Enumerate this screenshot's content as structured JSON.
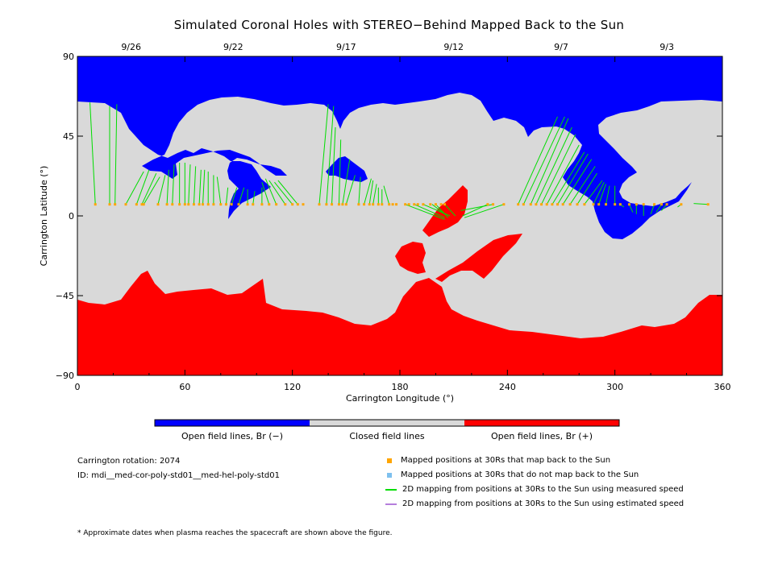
{
  "chart_data": {
    "type": "map",
    "title": "Simulated Coronal Holes with STEREO−Behind Mapped Back to the Sun",
    "xlabel": "Carrington Longitude (°)",
    "ylabel": "Carrington Latitude (°)",
    "xlim": [
      0,
      360
    ],
    "ylim": [
      -90,
      90
    ],
    "x_ticks": [
      0,
      60,
      120,
      180,
      240,
      300,
      360
    ],
    "y_ticks": [
      90,
      45,
      0,
      -45,
      -90
    ],
    "y_tick_labels": [
      "90",
      "45",
      "0",
      "−45",
      "−90"
    ],
    "top_date_labels": [
      {
        "lon": 30,
        "label": "9/26"
      },
      {
        "lon": 87,
        "label": "9/22"
      },
      {
        "lon": 150,
        "label": "9/17"
      },
      {
        "lon": 210,
        "label": "9/12"
      },
      {
        "lon": 270,
        "label": "9/7"
      },
      {
        "lon": 329,
        "label": "9/3"
      }
    ],
    "colorbar": [
      {
        "label": "Open field lines, Br (−)",
        "color": "#0000ff"
      },
      {
        "label": "Closed field lines",
        "color": "#d9d9d9"
      },
      {
        "label": "Open field lines, Br (+)",
        "color": "#ff0000"
      }
    ],
    "regions": {
      "north_open_color": "#0000ff",
      "south_open_color": "#ff0000",
      "closed_color": "#d9d9d9"
    },
    "mapped_positions_lat": 6.5,
    "mapped_positions_lon": [
      10,
      18,
      21,
      27,
      33,
      36,
      37,
      45,
      50,
      53,
      57,
      60,
      62,
      65,
      68,
      70,
      73,
      76,
      80,
      83,
      86,
      90,
      95,
      98,
      103,
      107,
      111,
      116,
      120,
      123,
      126,
      135,
      139,
      142,
      146,
      148,
      150,
      157,
      160,
      163,
      165,
      168,
      170,
      174,
      176,
      178,
      183,
      185,
      188,
      190,
      193,
      197,
      200,
      203,
      205,
      229,
      232,
      238,
      246,
      249,
      253,
      256,
      259,
      262,
      265,
      268,
      271,
      275,
      279,
      283,
      288,
      291,
      295,
      300,
      303,
      308,
      312,
      316,
      322,
      326,
      329,
      337,
      352
    ],
    "mapping_lines": [
      [
        10,
        6.5,
        7,
        64
      ],
      [
        18,
        6.5,
        18,
        62
      ],
      [
        21,
        6.5,
        22,
        63
      ],
      [
        27,
        6.5,
        37,
        25
      ],
      [
        33,
        6.5,
        40,
        26
      ],
      [
        36,
        6.5,
        44,
        24
      ],
      [
        37,
        6.5,
        46,
        22
      ],
      [
        45,
        6.5,
        49,
        23
      ],
      [
        50,
        6.5,
        51,
        26
      ],
      [
        53,
        6.5,
        54,
        29
      ],
      [
        57,
        6.5,
        57,
        30
      ],
      [
        60,
        6.5,
        60,
        30
      ],
      [
        62,
        6.5,
        63,
        29
      ],
      [
        65,
        6.5,
        66,
        28
      ],
      [
        68,
        6.5,
        69,
        26
      ],
      [
        70,
        6.5,
        71,
        26
      ],
      [
        73,
        6.5,
        73,
        25
      ],
      [
        76,
        6.5,
        76,
        23
      ],
      [
        80,
        6.5,
        78,
        22
      ],
      [
        83,
        6.5,
        84,
        16
      ],
      [
        86,
        6.5,
        89,
        16
      ],
      [
        90,
        6.5,
        93,
        16
      ],
      [
        95,
        6.5,
        95,
        15
      ],
      [
        98,
        6.5,
        99,
        14
      ],
      [
        103,
        6.5,
        103,
        16
      ],
      [
        107,
        6.5,
        103,
        19
      ],
      [
        111,
        6.5,
        105,
        21
      ],
      [
        116,
        6.5,
        107,
        20
      ],
      [
        120,
        6.5,
        110,
        19
      ],
      [
        123,
        6.5,
        112,
        20
      ],
      [
        135,
        6.5,
        140,
        63
      ],
      [
        139,
        6.5,
        143,
        62
      ],
      [
        142,
        6.5,
        144,
        50
      ],
      [
        146,
        6.5,
        147,
        43
      ],
      [
        148,
        6.5,
        152,
        32
      ],
      [
        150,
        6.5,
        155,
        23
      ],
      [
        157,
        6.5,
        158,
        22
      ],
      [
        160,
        6.5,
        164,
        21
      ],
      [
        163,
        6.5,
        165,
        20
      ],
      [
        165,
        6.5,
        167,
        18
      ],
      [
        168,
        6.5,
        168,
        16
      ],
      [
        170,
        6.5,
        170,
        15
      ],
      [
        174,
        6.5,
        171,
        17
      ],
      [
        183,
        6.5,
        205,
        -2
      ],
      [
        188,
        6.5,
        205,
        -1
      ],
      [
        193,
        6.5,
        208,
        0
      ],
      [
        198,
        6.5,
        205,
        1
      ],
      [
        200,
        6.5,
        207,
        -1
      ],
      [
        205,
        6.5,
        211,
        0
      ],
      [
        229,
        6.5,
        215,
        0
      ],
      [
        232,
        6.5,
        214,
        3
      ],
      [
        238,
        6.5,
        216,
        -1
      ],
      [
        246,
        6.5,
        268,
        56
      ],
      [
        249,
        6.5,
        272,
        56
      ],
      [
        253,
        6.5,
        274,
        55
      ],
      [
        256,
        6.5,
        276,
        50
      ],
      [
        259,
        6.5,
        278,
        46
      ],
      [
        262,
        6.5,
        280,
        40
      ],
      [
        265,
        6.5,
        283,
        36
      ],
      [
        268,
        6.5,
        285,
        35
      ],
      [
        271,
        6.5,
        287,
        32
      ],
      [
        275,
        6.5,
        289,
        28
      ],
      [
        279,
        6.5,
        290,
        24
      ],
      [
        283,
        6.5,
        293,
        20
      ],
      [
        288,
        6.5,
        294,
        19
      ],
      [
        291,
        6.5,
        295,
        18
      ],
      [
        295,
        6.5,
        297,
        17
      ],
      [
        300,
        6.5,
        300,
        17
      ],
      [
        303,
        6.5,
        305,
        5
      ],
      [
        308,
        6.5,
        310,
        2
      ],
      [
        312,
        6.5,
        312,
        1
      ],
      [
        316,
        6.5,
        316,
        0
      ],
      [
        322,
        6.5,
        320,
        1
      ],
      [
        326,
        6.5,
        323,
        2
      ],
      [
        329,
        6.5,
        326,
        3
      ],
      [
        337,
        6.5,
        335,
        5
      ],
      [
        352,
        6.5,
        344,
        7
      ]
    ]
  },
  "info": {
    "carrington_rotation": "Carrington rotation: 2074",
    "id": "ID: mdi__med-cor-poly-std01__med-hel-poly-std01"
  },
  "legend": [
    {
      "label": "Mapped positions at 30Rs that map back to the Sun",
      "type": "square",
      "color": "#ffa500"
    },
    {
      "label": "Mapped positions at 30Rs that do not map back to the Sun",
      "type": "square",
      "color": "#7ec0ee"
    },
    {
      "label": "2D mapping from positions at 30Rs to the Sun using measured speed",
      "type": "line",
      "color": "#00dd00"
    },
    {
      "label": "2D mapping from positions at 30Rs to the Sun using estimated speed",
      "type": "line",
      "color": "#b57edc"
    }
  ],
  "footnote": "* Approximate dates when plasma reaches the spacecraft are shown above the figure."
}
